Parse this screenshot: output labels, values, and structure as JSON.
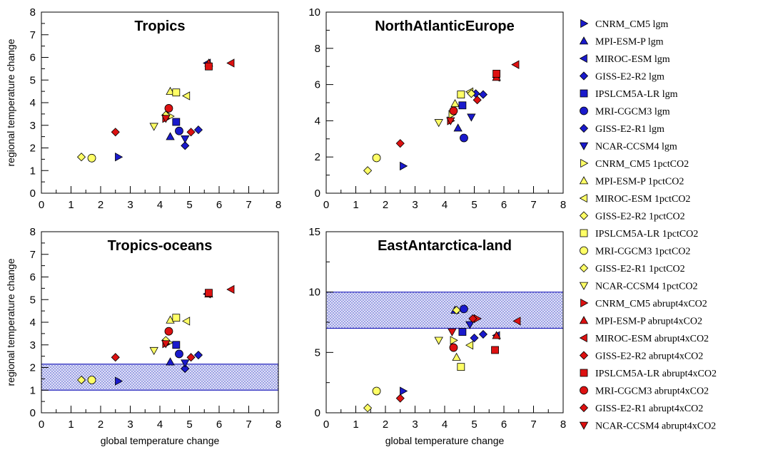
{
  "colors": {
    "lgm": "#1a1acc",
    "pct": "#ffff66",
    "abrupt": "#dd1111",
    "band_fill": "#dfe3f6",
    "band_dot": "#3a3acc",
    "band_edge": "#2222bb"
  },
  "legend": [
    {
      "label": "CNRM_CM5 lgm",
      "marker": "triangle-right",
      "group": "lgm"
    },
    {
      "label": "MPI-ESM-P lgm",
      "marker": "triangle-up",
      "group": "lgm"
    },
    {
      "label": "MIROC-ESM lgm",
      "marker": "triangle-left",
      "group": "lgm"
    },
    {
      "label": "GISS-E2-R2 lgm",
      "marker": "diamond",
      "group": "lgm"
    },
    {
      "label": "IPSLCM5A-LR lgm",
      "marker": "square",
      "group": "lgm"
    },
    {
      "label": "MRI-CGCM3 lgm",
      "marker": "circle",
      "group": "lgm"
    },
    {
      "label": "GISS-E2-R1 lgm",
      "marker": "diamond",
      "group": "lgm"
    },
    {
      "label": "NCAR-CCSM4 lgm",
      "marker": "triangle-down",
      "group": "lgm"
    },
    {
      "label": "CNRM_CM5 1pctCO2",
      "marker": "triangle-right",
      "group": "pct"
    },
    {
      "label": "MPI-ESM-P 1pctCO2",
      "marker": "triangle-up",
      "group": "pct"
    },
    {
      "label": "MIROC-ESM 1pctCO2",
      "marker": "triangle-left",
      "group": "pct"
    },
    {
      "label": "GISS-E2-R2 1pctCO2",
      "marker": "diamond",
      "group": "pct"
    },
    {
      "label": "IPSLCM5A-LR 1pctCO2",
      "marker": "square",
      "group": "pct"
    },
    {
      "label": "MRI-CGCM3 1pctCO2",
      "marker": "circle",
      "group": "pct"
    },
    {
      "label": "GISS-E2-R1 1pctCO2",
      "marker": "diamond",
      "group": "pct"
    },
    {
      "label": "NCAR-CCSM4 1pctCO2",
      "marker": "triangle-down",
      "group": "pct"
    },
    {
      "label": "CNRM_CM5 abrupt4xCO2",
      "marker": "triangle-right",
      "group": "abrupt"
    },
    {
      "label": "MPI-ESM-P abrupt4xCO2",
      "marker": "triangle-up",
      "group": "abrupt"
    },
    {
      "label": "MIROC-ESM abrupt4xCO2",
      "marker": "triangle-left",
      "group": "abrupt"
    },
    {
      "label": "GISS-E2-R2 abrupt4xCO2",
      "marker": "diamond",
      "group": "abrupt"
    },
    {
      "label": "IPSLCM5A-LR abrupt4xCO2",
      "marker": "square",
      "group": "abrupt"
    },
    {
      "label": "MRI-CGCM3 abrupt4xCO2",
      "marker": "circle",
      "group": "abrupt"
    },
    {
      "label": "GISS-E2-R1 abrupt4xCO2",
      "marker": "diamond",
      "group": "abrupt"
    },
    {
      "label": "NCAR-CCSM4 abrupt4xCO2",
      "marker": "triangle-down",
      "group": "abrupt"
    }
  ],
  "chart_data": [
    {
      "type": "scatter",
      "title": "Tropics",
      "xlabel": "",
      "ylabel": "regional temperature change",
      "xlim": [
        0,
        8
      ],
      "ylim": [
        0,
        8
      ],
      "xticks": [
        0,
        1,
        2,
        3,
        4,
        5,
        6,
        7,
        8
      ],
      "yticks": [
        0,
        1,
        2,
        3,
        4,
        5,
        6,
        7,
        8
      ],
      "band": null,
      "points": [
        [
          2.6,
          1.6
        ],
        [
          4.35,
          2.5
        ],
        [
          5.6,
          5.75
        ],
        [
          4.85,
          2.1
        ],
        [
          4.55,
          3.15
        ],
        [
          4.65,
          2.75
        ],
        [
          5.3,
          2.8
        ],
        [
          4.85,
          2.4
        ],
        [
          4.35,
          3.4
        ],
        [
          4.35,
          4.5
        ],
        [
          4.9,
          4.3
        ],
        [
          1.35,
          1.6
        ],
        [
          4.55,
          4.45
        ],
        [
          1.7,
          1.55
        ],
        [
          4.2,
          3.45
        ],
        [
          3.8,
          2.95
        ],
        [
          4.2,
          3.3
        ],
        [
          5.65,
          5.75
        ],
        [
          6.4,
          5.75
        ],
        [
          2.5,
          2.7
        ],
        [
          5.65,
          5.6
        ],
        [
          4.3,
          3.75
        ],
        [
          5.05,
          2.7
        ],
        [
          4.2,
          3.3
        ]
      ]
    },
    {
      "type": "scatter",
      "title": "NorthAtlanticEurope",
      "xlabel": "",
      "ylabel": "",
      "xlim": [
        0,
        8
      ],
      "ylim": [
        0,
        10
      ],
      "xticks": [
        0,
        1,
        2,
        3,
        4,
        5,
        6,
        7,
        8
      ],
      "yticks": [
        0,
        2,
        4,
        6,
        8,
        10
      ],
      "band": null,
      "points": [
        [
          2.6,
          1.5
        ],
        [
          4.45,
          3.6
        ],
        [
          5.75,
          6.4
        ],
        [
          5.3,
          5.45
        ],
        [
          4.6,
          4.85
        ],
        [
          4.65,
          3.05
        ],
        [
          5.05,
          5.5
        ],
        [
          4.9,
          4.2
        ],
        [
          4.25,
          4.35
        ],
        [
          4.35,
          4.95
        ],
        [
          4.85,
          5.6
        ],
        [
          1.4,
          1.25
        ],
        [
          4.55,
          5.45
        ],
        [
          1.7,
          1.95
        ],
        [
          4.9,
          5.5
        ],
        [
          3.8,
          3.9
        ],
        [
          4.2,
          4.0
        ],
        [
          5.75,
          6.4
        ],
        [
          6.4,
          7.1
        ],
        [
          2.5,
          2.75
        ],
        [
          5.75,
          6.6
        ],
        [
          4.3,
          4.55
        ],
        [
          5.1,
          5.15
        ],
        [
          4.2,
          4.0
        ]
      ]
    },
    {
      "type": "scatter",
      "title": "Tropics-oceans",
      "xlabel": "global temperature change",
      "ylabel": "regional temperature change",
      "xlim": [
        0,
        8
      ],
      "ylim": [
        0,
        8
      ],
      "xticks": [
        0,
        1,
        2,
        3,
        4,
        5,
        6,
        7,
        8
      ],
      "yticks": [
        0,
        1,
        2,
        3,
        4,
        5,
        6,
        7,
        8
      ],
      "band": [
        1.0,
        2.15
      ],
      "points": [
        [
          2.6,
          1.4
        ],
        [
          4.35,
          2.25
        ],
        [
          5.6,
          5.25
        ],
        [
          4.85,
          1.95
        ],
        [
          4.55,
          3.0
        ],
        [
          4.65,
          2.6
        ],
        [
          5.3,
          2.55
        ],
        [
          4.85,
          2.2
        ],
        [
          4.3,
          3.1
        ],
        [
          4.35,
          4.1
        ],
        [
          4.9,
          4.05
        ],
        [
          1.35,
          1.45
        ],
        [
          4.55,
          4.2
        ],
        [
          1.7,
          1.45
        ],
        [
          4.2,
          3.2
        ],
        [
          3.8,
          2.75
        ],
        [
          4.2,
          3.05
        ],
        [
          5.65,
          5.25
        ],
        [
          6.4,
          5.45
        ],
        [
          2.5,
          2.45
        ],
        [
          5.65,
          5.3
        ],
        [
          4.3,
          3.6
        ],
        [
          5.05,
          2.45
        ],
        [
          4.2,
          3.05
        ]
      ]
    },
    {
      "type": "scatter",
      "title": "EastAntarctica-land",
      "xlabel": "global temperature change",
      "ylabel": "",
      "xlim": [
        0,
        8
      ],
      "ylim": [
        0,
        15
      ],
      "xticks": [
        0,
        1,
        2,
        3,
        4,
        5,
        6,
        7,
        8
      ],
      "yticks": [
        0,
        5,
        10,
        15
      ],
      "band": [
        7.0,
        10.0
      ],
      "points": [
        [
          2.6,
          1.8
        ],
        [
          4.35,
          8.5
        ],
        [
          5.75,
          6.4
        ],
        [
          5.3,
          6.5
        ],
        [
          4.6,
          6.7
        ],
        [
          4.65,
          8.6
        ],
        [
          5.0,
          6.2
        ],
        [
          4.85,
          7.3
        ],
        [
          4.3,
          6.0
        ],
        [
          4.4,
          4.6
        ],
        [
          4.85,
          5.6
        ],
        [
          1.4,
          0.4
        ],
        [
          4.55,
          3.8
        ],
        [
          1.7,
          1.8
        ],
        [
          4.4,
          8.5
        ],
        [
          3.8,
          6.0
        ],
        [
          5.1,
          7.8
        ],
        [
          5.75,
          6.4
        ],
        [
          6.45,
          7.6
        ],
        [
          2.5,
          1.2
        ],
        [
          5.7,
          5.2
        ],
        [
          4.3,
          5.4
        ],
        [
          4.95,
          7.8
        ],
        [
          4.25,
          6.7
        ]
      ]
    }
  ]
}
